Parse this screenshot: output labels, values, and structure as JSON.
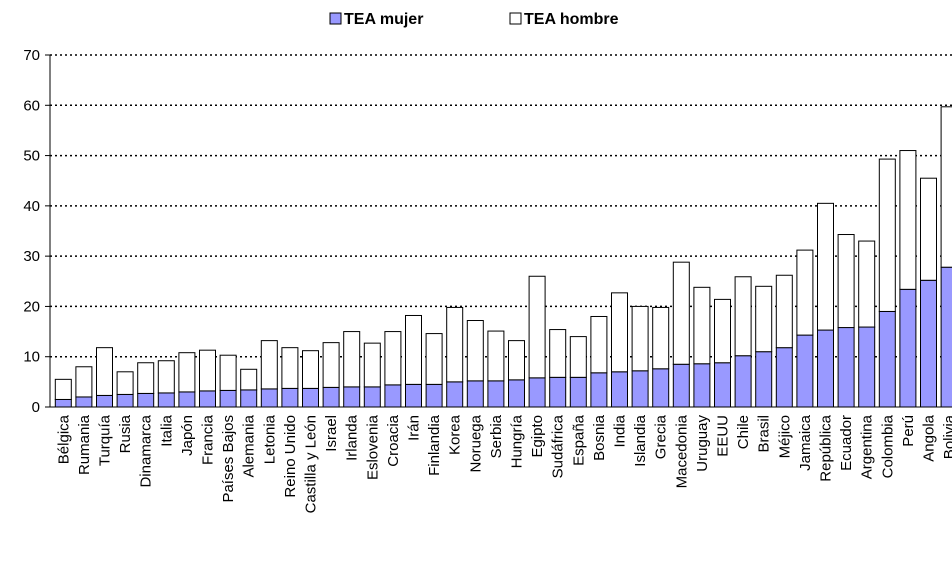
{
  "chart_data": {
    "type": "stacked_bar",
    "categories": [
      "Bélgica",
      "Rumania",
      "Turquía",
      "Rusia",
      "Dinamarca",
      "Italia",
      "Japón",
      "Francia",
      "Países Bajos",
      "Alemania",
      "Letonia",
      "Reino Unido",
      "Castilla y León",
      "Israel",
      "Irlanda",
      "Eslovenia",
      "Croacia",
      "Irán",
      "Finlandia",
      "Korea",
      "Noruega",
      "Serbia",
      "Hungría",
      "Egipto",
      "Sudáfrica",
      "España",
      "Bosnia",
      "India",
      "Islandia",
      "Grecia",
      "Macedonia",
      "Uruguay",
      "EEUU",
      "Chile",
      "Brasil",
      "Méjico",
      "Jamaica",
      "República",
      "Ecuador",
      "Argentina",
      "Colombia",
      "Perú",
      "Angola",
      "Bolivia"
    ],
    "series": [
      {
        "name": "TEA mujer",
        "color": "#9999ff",
        "values": [
          1.5,
          2,
          2.3,
          2.5,
          2.7,
          2.8,
          3,
          3.2,
          3.3,
          3.4,
          3.6,
          3.7,
          3.7,
          3.9,
          4,
          4,
          4.4,
          4.5,
          4.5,
          5,
          5.2,
          5.2,
          5.4,
          5.8,
          5.9,
          5.9,
          6.8,
          7,
          7.2,
          7.6,
          8.5,
          8.6,
          8.8,
          10.2,
          11,
          11.8,
          14.3,
          15.3,
          15.8,
          15.9,
          19,
          23.4,
          25.2,
          27.8
        ]
      },
      {
        "name": "TEA hombre",
        "color": "#ffffff",
        "values": [
          4,
          6,
          9.5,
          4.5,
          6.1,
          6.4,
          7.8,
          8.1,
          7,
          4.1,
          9.6,
          8.1,
          7.5,
          8.9,
          11,
          8.7,
          10.6,
          13.7,
          10.1,
          14.8,
          12,
          9.9,
          7.8,
          20.2,
          9.5,
          8.1,
          11.2,
          15.7,
          12.8,
          12.2,
          20.3,
          15.2,
          12.6,
          15.7,
          13,
          14.4,
          16.9,
          25.2,
          18.5,
          17.1,
          30.3,
          27.6,
          20.3,
          31.9
        ]
      }
    ],
    "ylim": [
      0,
      70
    ],
    "yticks": [
      0,
      10,
      20,
      30,
      40,
      50,
      60,
      70
    ],
    "grid": true,
    "legend": "top"
  }
}
